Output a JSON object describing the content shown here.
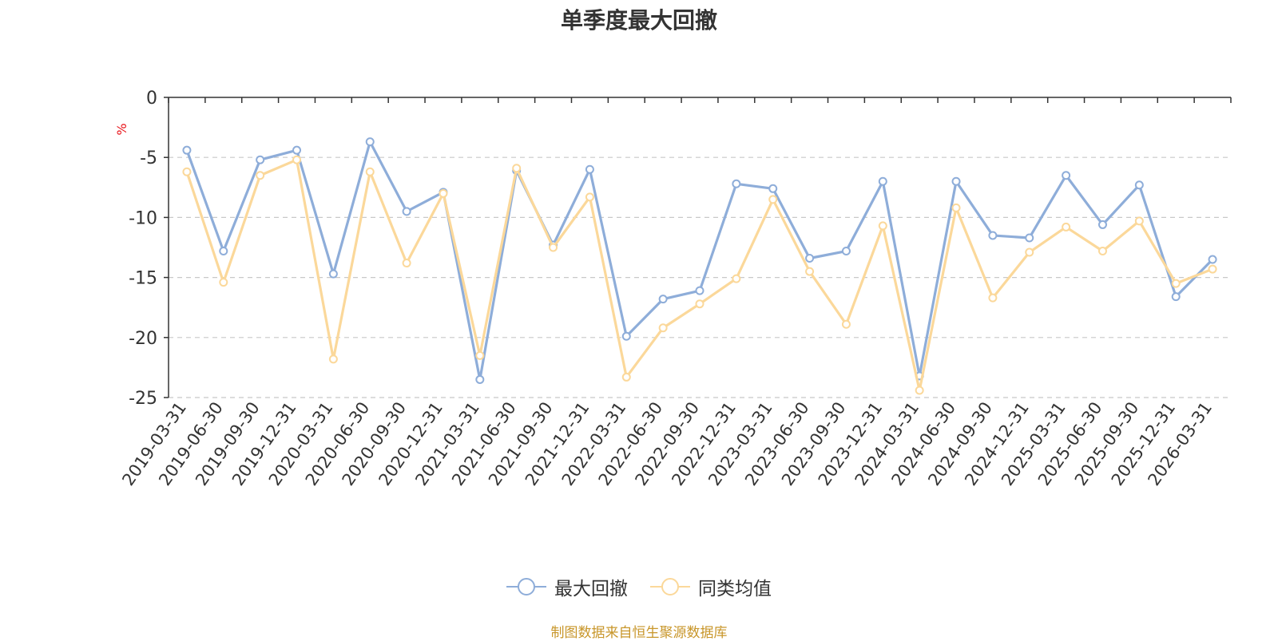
{
  "title": "单季度最大回撤",
  "source": "制图数据来自恒生聚源数据库",
  "colors": {
    "series1": "#8eadd9",
    "series2": "#fbd89a",
    "grid": "#c8c8c8",
    "axis": "#333333",
    "unit": "#e8141a",
    "source": "#c8962a"
  },
  "chart_data": {
    "type": "line",
    "title": "单季度最大回撤",
    "ylabel": "%",
    "ylim": [
      -25,
      0
    ],
    "yticks": [
      0,
      -5,
      -10,
      -15,
      -20,
      -25
    ],
    "grid": true,
    "legend_position": "bottom",
    "categories": [
      "2019-03-31",
      "2019-06-30",
      "2019-09-30",
      "2019-12-31",
      "2020-03-31",
      "2020-06-30",
      "2020-09-30",
      "2020-12-31",
      "2021-03-31",
      "2021-06-30",
      "2021-09-30",
      "2021-12-31",
      "2022-03-31",
      "2022-06-30",
      "2022-09-30",
      "2022-12-31",
      "2023-03-31",
      "2023-06-30",
      "2023-09-30",
      "2023-12-31",
      "2024-03-31",
      "2024-06-30",
      "2024-09-30",
      "2024-12-31",
      "2025-03-31",
      "2025-06-30",
      "2025-09-30",
      "2025-12-31",
      "2026-03-31"
    ],
    "series": [
      {
        "name": "最大回撤",
        "color": "#8eadd9",
        "values": [
          -4.4,
          -12.8,
          -5.2,
          -4.4,
          -14.7,
          -3.7,
          -9.5,
          -7.9,
          -23.5,
          -6.1,
          -12.3,
          -6.0,
          -19.9,
          -16.8,
          -16.1,
          -7.2,
          -7.6,
          -13.4,
          -12.8,
          -7.0,
          -23.2,
          -7.0,
          -11.5,
          -11.7,
          -6.5,
          -10.6,
          -7.3,
          -16.6,
          -13.5
        ]
      },
      {
        "name": "同类均值",
        "color": "#fbd89a",
        "values": [
          -6.2,
          -15.4,
          -6.5,
          -5.2,
          -21.8,
          -6.2,
          -13.8,
          -8.0,
          -21.5,
          -5.9,
          -12.5,
          -8.3,
          -23.3,
          -19.2,
          -17.2,
          -15.1,
          -8.5,
          -14.5,
          -18.9,
          -10.7,
          -24.4,
          -9.2,
          -16.7,
          -12.9,
          -10.8,
          -12.8,
          -10.3,
          -15.5,
          -14.3
        ]
      }
    ]
  }
}
